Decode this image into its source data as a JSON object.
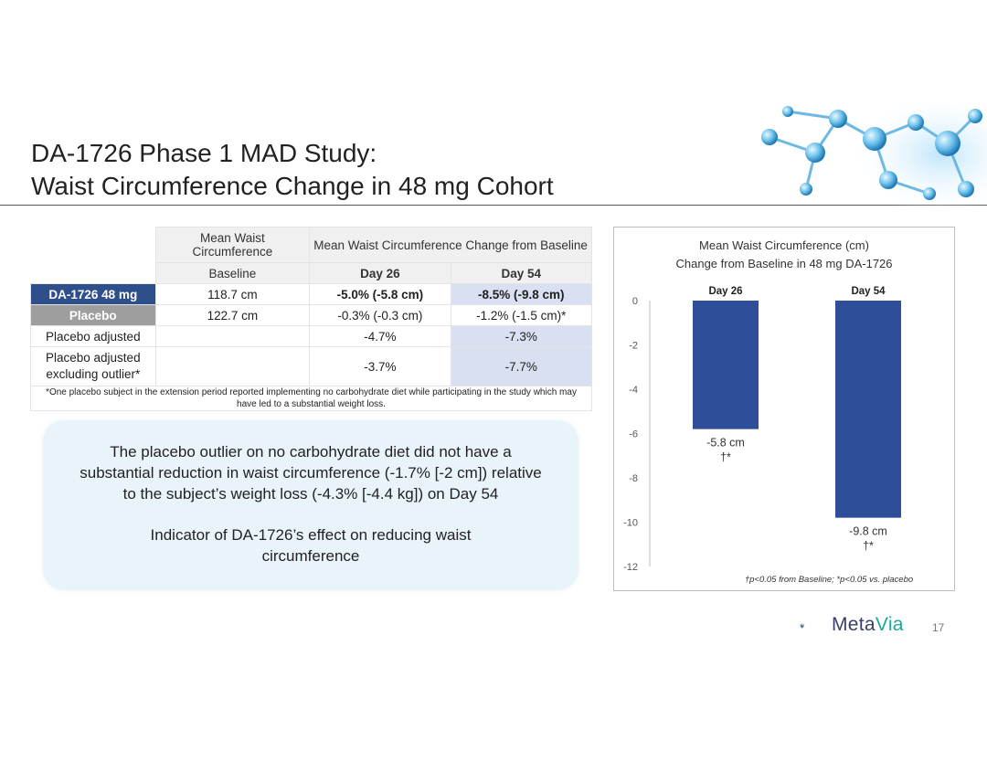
{
  "slide": {
    "title_line1": "DA-1726 Phase 1 MAD Study:",
    "title_line2": "Waist Circumference Change in 48 mg Cohort",
    "page_number": "17"
  },
  "table": {
    "col1_header": "Mean Waist Circumference",
    "col23_header": "Mean Waist Circumference Change from Baseline",
    "sub_baseline": "Baseline",
    "sub_day26": "Day 26",
    "sub_day54": "Day 54",
    "rows": [
      {
        "label": "DA-1726 48 mg",
        "baseline": "118.7 cm",
        "day26": "-5.0% (-5.8 cm)",
        "day54": "-8.5% (-9.8 cm)"
      },
      {
        "label": "Placebo",
        "baseline": "122.7 cm",
        "day26": "-0.3% (-0.3 cm)",
        "day54": "-1.2% (-1.5 cm)*"
      },
      {
        "label": "Placebo adjusted",
        "baseline": "",
        "day26": "-4.7%",
        "day54": "-7.3%"
      },
      {
        "label": "Placebo adjusted excluding outlier*",
        "baseline": "",
        "day26": "-3.7%",
        "day54": "-7.7%"
      }
    ],
    "footnote": "*One placebo subject in the extension period reported implementing no carbohydrate diet while participating in the study which may have led to a substantial weight loss."
  },
  "callout": {
    "paragraph1": "The placebo outlier on no carbohydrate diet did not have a substantial reduction in waist circumference (-1.7% [-2 cm]) relative to the subject’s weight loss (-4.3% [-4.4 kg]) on Day 54",
    "paragraph2": "Indicator of DA-1726’s effect on reducing waist circumference"
  },
  "chart_data": {
    "type": "bar",
    "title": "Mean Waist Circumference (cm)",
    "subtitle": "Change from Baseline in 48 mg DA-1726",
    "categories": [
      "Day 26",
      "Day 54"
    ],
    "values": [
      -5.8,
      -9.8
    ],
    "value_labels": [
      "-5.8 cm",
      "-9.8 cm"
    ],
    "significance": [
      "†*",
      "†*"
    ],
    "ylim": [
      -12,
      0
    ],
    "yticks": [
      0,
      -2,
      -4,
      -6,
      -8,
      -10,
      -12
    ],
    "bar_color": "#2f4e9a",
    "footnote": "†p<0.05 from Baseline; *p<0.05 vs. placebo"
  },
  "logo": {
    "text_meta": "Meta",
    "text_via": "Via",
    "icon": "metavia-leaf-icon"
  }
}
